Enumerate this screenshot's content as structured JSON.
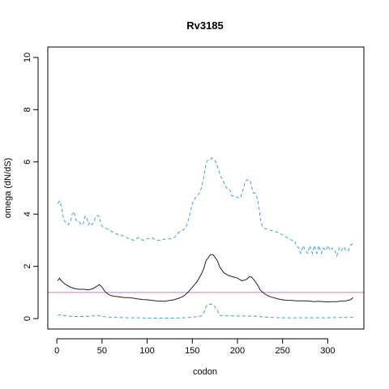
{
  "chart_data": {
    "type": "line",
    "title": "Rv3185",
    "xlabel": "codon",
    "ylabel": "omega (dN/dS)",
    "xlim": [
      -10,
      340
    ],
    "ylim": [
      -0.4,
      10.4
    ],
    "xticks": [
      0,
      50,
      100,
      150,
      200,
      250,
      300
    ],
    "yticks": [
      0,
      2,
      4,
      6,
      8,
      10
    ],
    "grid": false,
    "reference_line": {
      "y": 1.0,
      "color": "#c080c0"
    },
    "series": [
      {
        "role": "upper-bound",
        "style": "dashed",
        "color": "#3aa0dd",
        "x": [
          1,
          3,
          5,
          7,
          9,
          11,
          13,
          15,
          17,
          19,
          21,
          23,
          25,
          27,
          29,
          31,
          33,
          35,
          37,
          39,
          41,
          43,
          45,
          47,
          49,
          51,
          55,
          60,
          65,
          70,
          75,
          80,
          85,
          90,
          95,
          100,
          105,
          110,
          115,
          120,
          125,
          130,
          135,
          140,
          143,
          145,
          148,
          150,
          153,
          155,
          158,
          160,
          162,
          164,
          166,
          168,
          170,
          172,
          174,
          176,
          178,
          180,
          182,
          184,
          186,
          188,
          190,
          192,
          194,
          196,
          198,
          200,
          202,
          204,
          206,
          208,
          210,
          212,
          214,
          216,
          218,
          220,
          222,
          224,
          226,
          228,
          230,
          235,
          240,
          245,
          250,
          255,
          260,
          263,
          265,
          268,
          270,
          273,
          275,
          278,
          280,
          283,
          285,
          288,
          290,
          293,
          295,
          298,
          300,
          303,
          305,
          308,
          310,
          313,
          315,
          318,
          320,
          323,
          325,
          328
        ],
        "y": [
          4.4,
          4.5,
          4.3,
          3.9,
          3.7,
          3.7,
          3.6,
          3.7,
          4.0,
          4.1,
          3.8,
          3.7,
          3.7,
          3.6,
          3.6,
          3.9,
          3.9,
          3.6,
          3.7,
          3.6,
          3.7,
          3.9,
          3.95,
          3.9,
          3.6,
          3.5,
          3.45,
          3.35,
          3.25,
          3.2,
          3.15,
          3.05,
          3.0,
          3.1,
          3.0,
          3.05,
          3.1,
          3.0,
          3.0,
          3.05,
          3.05,
          3.1,
          3.3,
          3.4,
          3.5,
          3.7,
          4.1,
          4.4,
          4.6,
          4.7,
          4.8,
          5.0,
          5.3,
          5.7,
          6.0,
          6.1,
          6.1,
          6.15,
          6.1,
          6.0,
          5.8,
          5.6,
          5.4,
          5.3,
          5.1,
          5.0,
          5.0,
          4.9,
          4.7,
          4.7,
          4.65,
          4.65,
          4.6,
          4.7,
          4.9,
          5.2,
          5.3,
          5.3,
          5.3,
          5.0,
          4.8,
          4.8,
          4.6,
          4.2,
          3.7,
          3.5,
          3.45,
          3.4,
          3.35,
          3.3,
          3.2,
          3.1,
          3.0,
          3.0,
          2.8,
          2.7,
          2.5,
          2.8,
          2.6,
          2.5,
          2.8,
          2.5,
          2.8,
          2.5,
          2.8,
          2.5,
          2.7,
          2.6,
          2.8,
          2.6,
          2.7,
          2.6,
          2.4,
          2.7,
          2.6,
          2.75,
          2.6,
          2.6,
          2.8,
          2.9
        ]
      },
      {
        "role": "estimate",
        "style": "solid",
        "color": "#222222",
        "x": [
          1,
          3,
          5,
          8,
          10,
          15,
          20,
          25,
          30,
          35,
          40,
          45,
          47,
          50,
          53,
          56,
          60,
          65,
          70,
          75,
          80,
          85,
          90,
          95,
          100,
          105,
          110,
          115,
          120,
          125,
          130,
          135,
          140,
          145,
          150,
          155,
          160,
          163,
          165,
          168,
          170,
          173,
          175,
          178,
          180,
          185,
          190,
          195,
          200,
          205,
          210,
          213,
          215,
          218,
          220,
          223,
          225,
          230,
          235,
          240,
          245,
          250,
          255,
          260,
          265,
          270,
          275,
          280,
          285,
          290,
          295,
          300,
          305,
          310,
          315,
          320,
          325,
          328
        ],
        "y": [
          1.45,
          1.55,
          1.45,
          1.35,
          1.3,
          1.2,
          1.15,
          1.12,
          1.12,
          1.1,
          1.15,
          1.25,
          1.3,
          1.2,
          1.05,
          0.95,
          0.88,
          0.85,
          0.83,
          0.8,
          0.8,
          0.78,
          0.75,
          0.73,
          0.72,
          0.7,
          0.68,
          0.67,
          0.66,
          0.7,
          0.72,
          0.78,
          0.85,
          1.0,
          1.2,
          1.4,
          1.7,
          1.95,
          2.2,
          2.35,
          2.45,
          2.45,
          2.35,
          2.2,
          2.0,
          1.75,
          1.65,
          1.6,
          1.55,
          1.45,
          1.5,
          1.6,
          1.6,
          1.5,
          1.4,
          1.25,
          1.1,
          0.95,
          0.85,
          0.8,
          0.75,
          0.72,
          0.7,
          0.7,
          0.68,
          0.68,
          0.68,
          0.67,
          0.65,
          0.66,
          0.65,
          0.64,
          0.65,
          0.65,
          0.67,
          0.68,
          0.72,
          0.8
        ]
      },
      {
        "role": "lower-bound",
        "style": "dashed",
        "color": "#3aa0dd",
        "x": [
          1,
          5,
          10,
          20,
          30,
          40,
          45,
          50,
          60,
          70,
          80,
          90,
          100,
          110,
          120,
          130,
          140,
          150,
          160,
          163,
          165,
          168,
          170,
          173,
          175,
          178,
          180,
          190,
          200,
          210,
          220,
          230,
          240,
          250,
          260,
          270,
          280,
          290,
          300,
          310,
          320,
          328
        ],
        "y": [
          0.12,
          0.15,
          0.1,
          0.08,
          0.08,
          0.1,
          0.12,
          0.08,
          0.05,
          0.04,
          0.03,
          0.03,
          0.02,
          0.02,
          0.02,
          0.02,
          0.03,
          0.05,
          0.1,
          0.25,
          0.45,
          0.55,
          0.55,
          0.55,
          0.45,
          0.3,
          0.12,
          0.1,
          0.1,
          0.1,
          0.09,
          0.06,
          0.04,
          0.03,
          0.03,
          0.03,
          0.03,
          0.03,
          0.03,
          0.04,
          0.04,
          0.05
        ]
      }
    ]
  }
}
